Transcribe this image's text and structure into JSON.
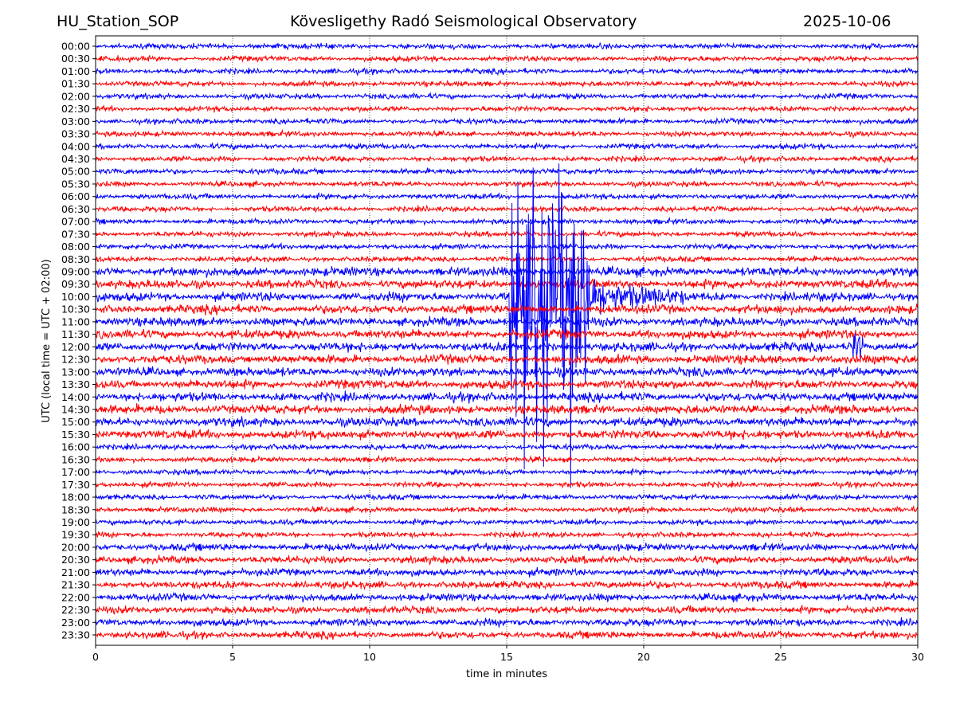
{
  "header": {
    "station": "HU_Station_SOP",
    "observatory": "Kövesligethy Radó Seismological Observatory",
    "date": "2025-10-06"
  },
  "chart_data": {
    "type": "line",
    "title": "Kövesligethy Radó Seismological Observatory",
    "xlabel": "time in minutes",
    "ylabel": "UTC (local time = UTC + 02:00)",
    "xlim": [
      0,
      30
    ],
    "xticks": [
      "0",
      "5",
      "10",
      "15",
      "20",
      "25",
      "30"
    ],
    "grid": "vertical dotted at x ticks",
    "row_labels": [
      "00:00",
      "00:30",
      "01:00",
      "01:30",
      "02:00",
      "02:30",
      "03:00",
      "03:30",
      "04:00",
      "04:30",
      "05:00",
      "05:30",
      "06:00",
      "06:30",
      "07:00",
      "07:30",
      "08:00",
      "08:30",
      "09:00",
      "09:30",
      "10:00",
      "10:30",
      "11:00",
      "11:30",
      "12:00",
      "12:30",
      "13:00",
      "13:30",
      "14:00",
      "14:30",
      "15:00",
      "15:30",
      "16:00",
      "16:30",
      "17:00",
      "17:30",
      "18:00",
      "18:30",
      "19:00",
      "19:30",
      "20:00",
      "20:30",
      "21:00",
      "21:30",
      "22:00",
      "22:30",
      "23:00",
      "23:30"
    ],
    "series_colors": [
      "#0000ff",
      "#ff0000"
    ],
    "events": [
      {
        "row": "10:00",
        "onset_min": 15.1,
        "strong_until_min": 18.0,
        "coda_end_min": 21.5,
        "relative_amplitude": 14
      },
      {
        "row": "12:00",
        "onset_min": 27.4,
        "strong_until_min": 28.0,
        "coda_end_min": 28.0,
        "relative_amplitude": 1.5
      }
    ]
  }
}
